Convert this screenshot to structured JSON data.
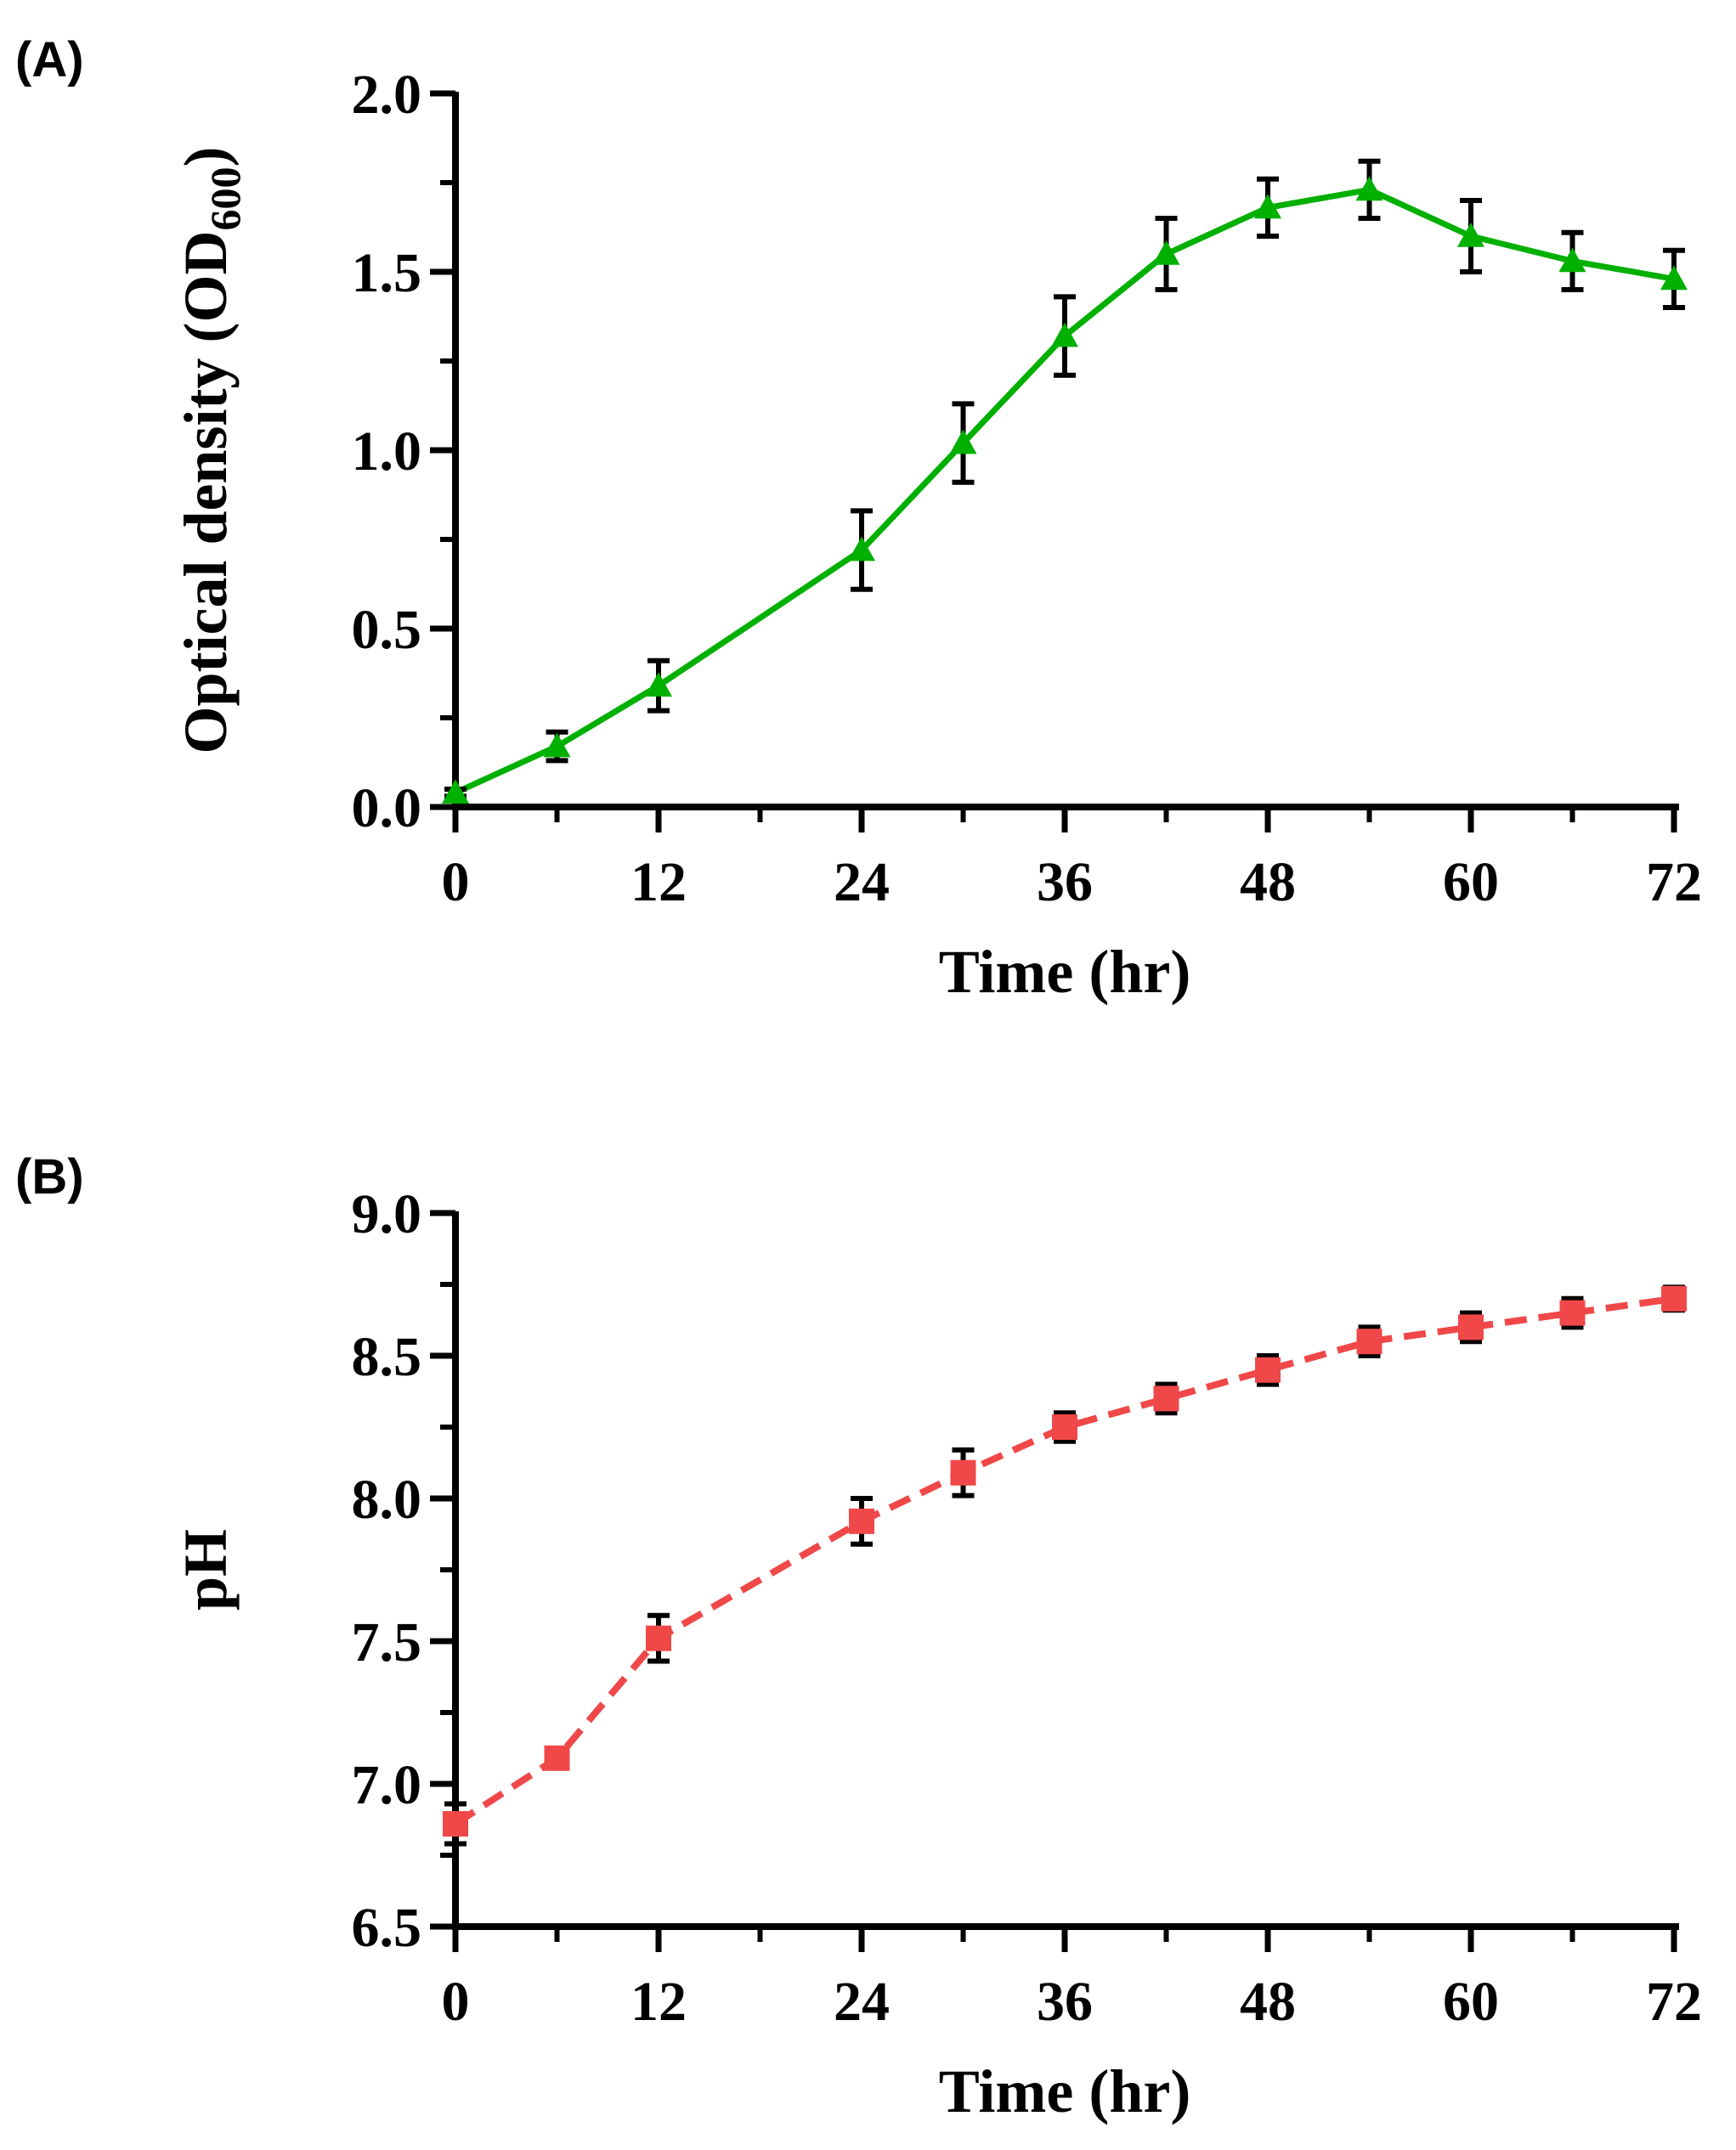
{
  "chart_data": [
    {
      "panel_label": "(A)",
      "type": "line",
      "x_label": "Time (hr)",
      "y_label": {
        "main": "Optical density (OD",
        "subscript": "600",
        "close": ")"
      },
      "xlim": [
        0,
        72
      ],
      "ylim": [
        0.0,
        2.0
      ],
      "x_ticks": [
        "0",
        "12",
        "24",
        "36",
        "48",
        "60",
        "72"
      ],
      "y_ticks": [
        "0.0",
        "0.5",
        "1.0",
        "1.5",
        "2.0"
      ],
      "grid": false,
      "series": [
        {
          "name": "OD600",
          "color": "#00b000",
          "marker": "triangle",
          "line": "solid",
          "x": [
            0,
            6,
            12,
            24,
            30,
            36,
            42,
            48,
            54,
            60,
            66,
            72
          ],
          "y": [
            0.04,
            0.17,
            0.34,
            0.72,
            1.02,
            1.32,
            1.55,
            1.68,
            1.73,
            1.6,
            1.53,
            1.48
          ],
          "error": [
            0.01,
            0.04,
            0.07,
            0.11,
            0.11,
            0.11,
            0.1,
            0.08,
            0.08,
            0.1,
            0.08,
            0.08
          ]
        }
      ]
    },
    {
      "panel_label": "(B)",
      "type": "line",
      "x_label": "Time (hr)",
      "y_label": {
        "main": "pH",
        "subscript": "",
        "close": ""
      },
      "xlim": [
        0,
        72
      ],
      "ylim": [
        6.5,
        9.0
      ],
      "x_ticks": [
        "0",
        "12",
        "24",
        "36",
        "48",
        "60",
        "72"
      ],
      "y_ticks": [
        "6.5",
        "7.0",
        "7.5",
        "8.0",
        "8.5",
        "9.0"
      ],
      "grid": false,
      "series": [
        {
          "name": "pH",
          "color": "#f04848",
          "marker": "square",
          "line": "dashed",
          "x": [
            0,
            6,
            12,
            24,
            30,
            36,
            42,
            48,
            54,
            60,
            66,
            72
          ],
          "y": [
            6.86,
            7.09,
            7.51,
            7.92,
            8.09,
            8.25,
            8.35,
            8.45,
            8.55,
            8.6,
            8.65,
            8.7
          ],
          "error": [
            0.07,
            0.03,
            0.08,
            0.08,
            0.08,
            0.05,
            0.05,
            0.05,
            0.05,
            0.05,
            0.05,
            0.04
          ]
        }
      ]
    }
  ]
}
